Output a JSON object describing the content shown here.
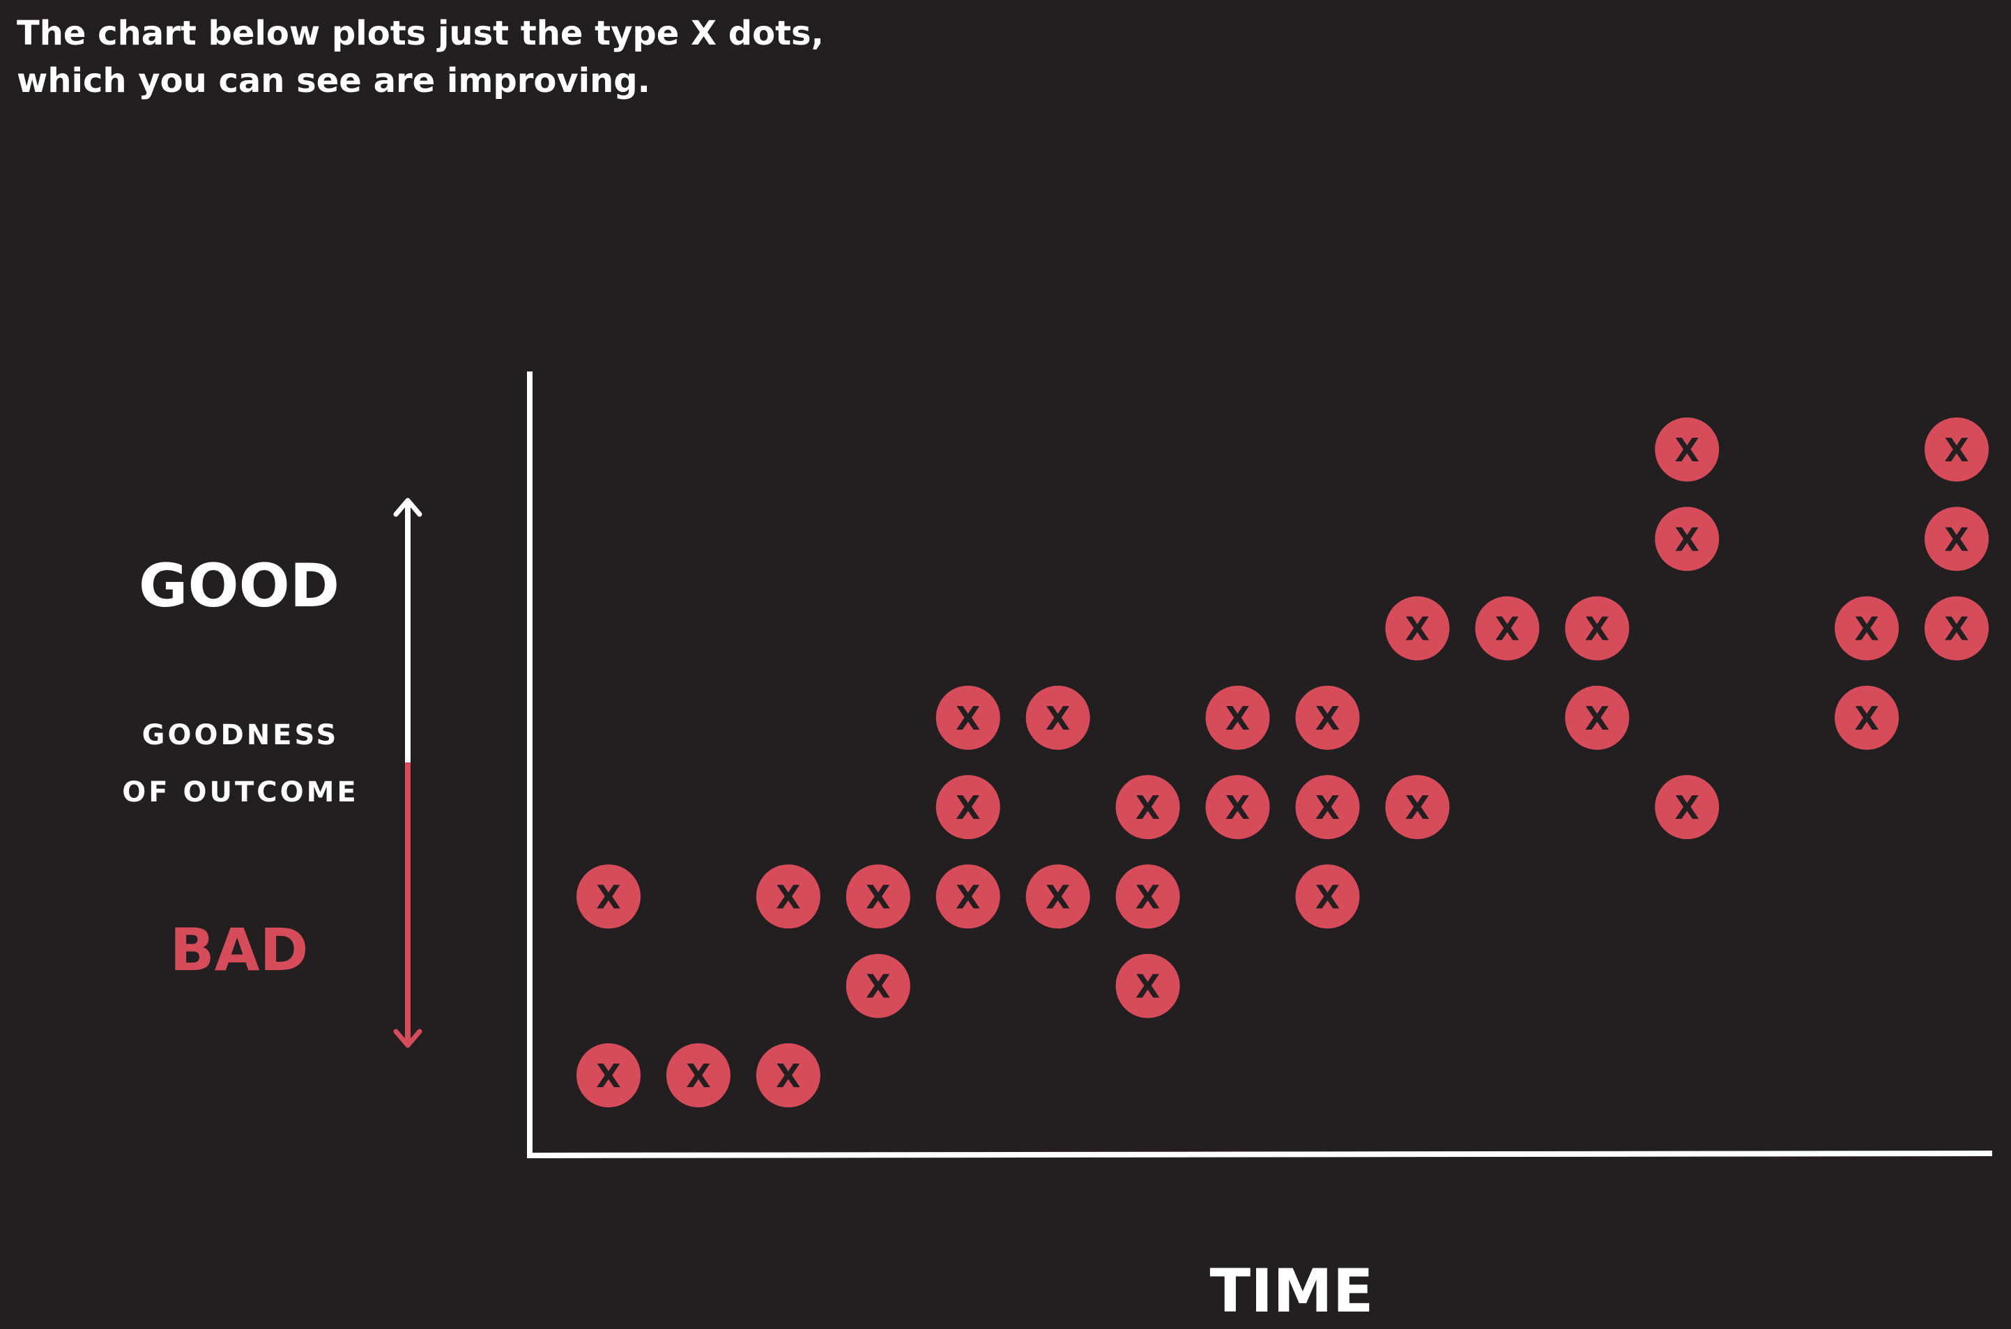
{
  "caption": {
    "line1": "The chart below plots just the type X dots,",
    "line2": "which you can see are improving."
  },
  "colors": {
    "background": "#231f20",
    "dot": "#d64c5a",
    "dot_text": "#231f20",
    "axis": "#ffffff",
    "bad": "#d64c5a"
  },
  "chart_data": {
    "type": "scatter",
    "xlabel": "TIME",
    "ylabel": "GOODNESS OF OUTCOME",
    "y_top_label": "GOOD",
    "y_bottom_label": "BAD",
    "marker_label": "X",
    "grid": false,
    "legend": "none",
    "xlim": [
      1,
      16
    ],
    "ylim": [
      1,
      8
    ],
    "points": [
      {
        "x": 1,
        "y": 1
      },
      {
        "x": 1,
        "y": 3
      },
      {
        "x": 2,
        "y": 1
      },
      {
        "x": 3,
        "y": 1
      },
      {
        "x": 3,
        "y": 3
      },
      {
        "x": 4,
        "y": 2
      },
      {
        "x": 4,
        "y": 3
      },
      {
        "x": 5,
        "y": 3
      },
      {
        "x": 5,
        "y": 4
      },
      {
        "x": 5,
        "y": 5
      },
      {
        "x": 6,
        "y": 3
      },
      {
        "x": 6,
        "y": 5
      },
      {
        "x": 7,
        "y": 2
      },
      {
        "x": 7,
        "y": 3
      },
      {
        "x": 7,
        "y": 4
      },
      {
        "x": 8,
        "y": 4
      },
      {
        "x": 8,
        "y": 5
      },
      {
        "x": 9,
        "y": 3
      },
      {
        "x": 9,
        "y": 4
      },
      {
        "x": 9,
        "y": 5
      },
      {
        "x": 10,
        "y": 4
      },
      {
        "x": 10,
        "y": 6
      },
      {
        "x": 11,
        "y": 6
      },
      {
        "x": 12,
        "y": 5
      },
      {
        "x": 12,
        "y": 6
      },
      {
        "x": 13,
        "y": 4
      },
      {
        "x": 13,
        "y": 7
      },
      {
        "x": 13,
        "y": 8
      },
      {
        "x": 15,
        "y": 5
      },
      {
        "x": 15,
        "y": 6
      },
      {
        "x": 16,
        "y": 6
      },
      {
        "x": 16,
        "y": 7
      },
      {
        "x": 16,
        "y": 8
      }
    ]
  }
}
